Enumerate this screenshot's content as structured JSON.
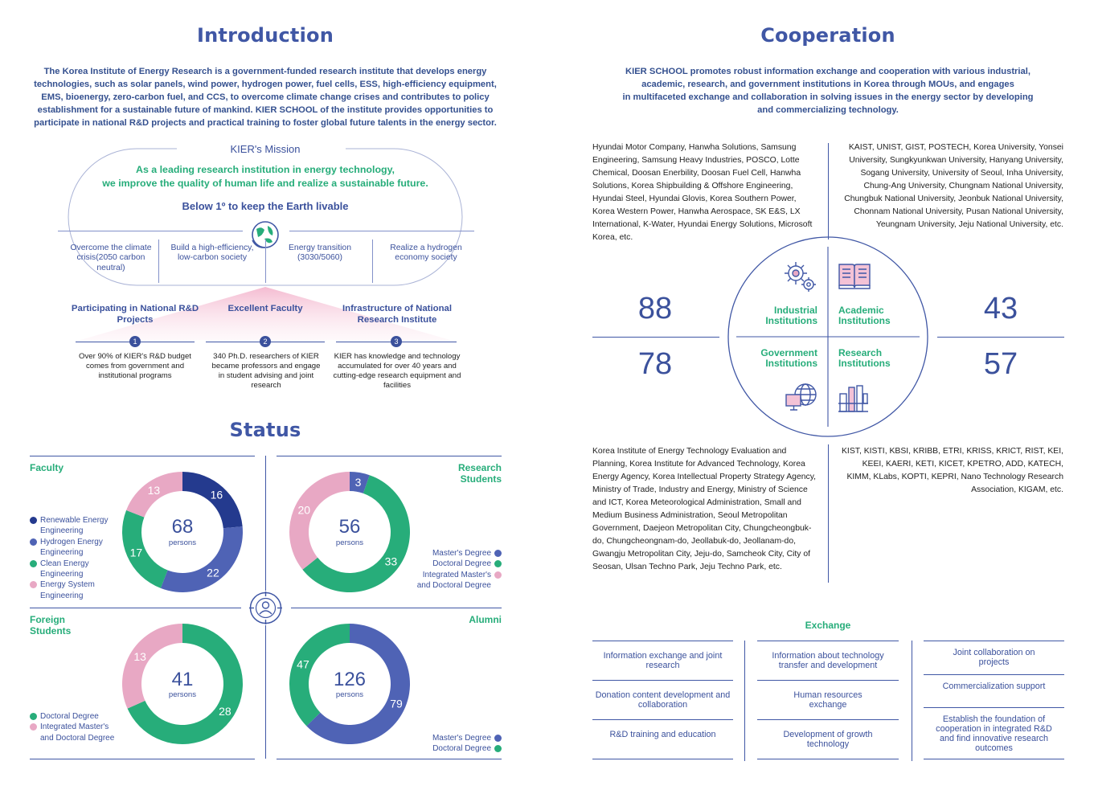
{
  "intro": {
    "title": "Introduction",
    "paragraph": "The Korea Institute of Energy Research is a government-funded research institute that develops energy technologies, such as solar panels, wind power, hydrogen power, fuel cells, ESS, high-efficiency equipment, EMS, bioenergy, zero-carbon fuel, and CCS, to overcome climate change crises and contributes to policy establishment for a sustainable future of mankind. KIER SCHOOL of the institute provides opportunities to participate in national R&D projects and practical training to foster global future talents in the energy sector.",
    "mission_label": "KIER's Mission",
    "mission_line1": "As a leading research institution in energy technology,",
    "mission_line2": "we improve the quality of human life and realize a sustainable future.",
    "goal": "Below 1º to keep the Earth livable",
    "goals": [
      "Overcome the climate crisis(2050 carbon neutral)",
      "Build a high-efficiency, low-carbon society",
      "Energy transition (3030/5060)",
      "Realize a hydrogen economy society"
    ],
    "pillars": [
      {
        "num": "1",
        "title": "Participating in National R&D Projects",
        "desc": "Over 90% of KIER's R&D budget comes from government and institutional programs"
      },
      {
        "num": "2",
        "title": "Excellent Faculty",
        "desc": "340 Ph.D. researchers of KIER became professors and engage in student advising and joint research"
      },
      {
        "num": "3",
        "title": "Infrastructure of National Research Institute",
        "desc": "KIER has knowledge and technology accumulated for over 40 years and cutting-edge research equipment and facilities"
      }
    ]
  },
  "status": {
    "title": "Status",
    "persons_label": "persons",
    "faculty": {
      "title": "Faculty",
      "total": "68",
      "legend": [
        "Renewable Energy Engineering",
        "Hydrogen Energy Engineering",
        "Clean Energy Engineering",
        "Energy System Engineering"
      ]
    },
    "research": {
      "title": "Research Students",
      "total": "56",
      "legend": [
        "Master's Degree",
        "Doctoral Degree",
        "Integrated Master's and Doctoral Degree"
      ]
    },
    "foreign": {
      "title": "Foreign Students",
      "total": "41",
      "legend": [
        "Doctoral Degree",
        "Integrated Master's and Doctoral Degree"
      ]
    },
    "alumni": {
      "title": "Alumni",
      "total": "126",
      "legend": [
        "Master's Degree",
        "Doctoral Degree"
      ]
    }
  },
  "chart_data": [
    {
      "type": "pie",
      "title": "Faculty",
      "categories": [
        "Renewable Energy Engineering",
        "Hydrogen Energy Engineering",
        "Clean Energy Engineering",
        "Energy System Engineering"
      ],
      "values": [
        16,
        22,
        17,
        13
      ],
      "colors": [
        "#243a8e",
        "#4f63b5",
        "#27ad7a",
        "#e8a8c4"
      ]
    },
    {
      "type": "pie",
      "title": "Research Students",
      "categories": [
        "Master's Degree",
        "Doctoral Degree",
        "Integrated Master's and Doctoral Degree"
      ],
      "values": [
        3,
        33,
        20
      ],
      "colors": [
        "#4f63b5",
        "#27ad7a",
        "#e8a8c4"
      ]
    },
    {
      "type": "pie",
      "title": "Foreign Students",
      "categories": [
        "Doctoral Degree",
        "Integrated Master's and Doctoral Degree"
      ],
      "values": [
        28,
        13
      ],
      "colors": [
        "#27ad7a",
        "#e8a8c4"
      ]
    },
    {
      "type": "pie",
      "title": "Alumni",
      "categories": [
        "Master's Degree",
        "Doctoral Degree"
      ],
      "values": [
        79,
        47
      ],
      "colors": [
        "#4f63b5",
        "#27ad7a"
      ]
    }
  ],
  "coop": {
    "title": "Cooperation",
    "paragraph_lines": [
      "KIER SCHOOL promotes robust information exchange and cooperation with various industrial,",
      "academic, research, and government institutions in Korea through MOUs, and engages",
      "in multifaceted exchange and collaboration in solving issues in the energy sector by developing",
      "and commercializing technology."
    ],
    "industrial_list": "Hyundai Motor Company, Hanwha Solutions, Samsung Engineering, Samsung Heavy Industries, POSCO, Lotte Chemical, Doosan Enerbility, Doosan Fuel Cell, Hanwha Solutions, Korea Shipbuilding & Offshore Engineering, Hyundai Steel, Hyundai Glovis, Korea Southern Power, Korea Western Power, Hanwha Aerospace, SK E&S, LX International, K-Water, Hyundai Energy Solutions, Microsoft Korea, etc.",
    "academic_list": "KAIST, UNIST, GIST, POSTECH, Korea University, Yonsei University, Sungkyunkwan University, Hanyang University, Sogang University, University of Seoul, Inha University, Chung-Ang University, Chungnam National University, Chungbuk National University, Jeonbuk National University, Chonnam National University, Pusan National University, Yeungnam University, Jeju National University, etc.",
    "government_list": "Korea Institute of Energy Technology Evaluation and Planning, Korea Institute for Advanced Technology, Korea Energy Agency, Korea Intellectual Property Strategy Agency, Ministry of Trade, Industry and Energy, Ministry of Science and ICT, Korea Meteorological Administration, Small and Medium Business Administration, Seoul Metropolitan Government, Daejeon Metropolitan City, Chungcheongbuk-do, Chungcheongnam-do, Jeollabuk-do, Jeollanam-do, Gwangju Metropolitan City, Jeju-do, Samcheok City, City of Seosan, Ulsan Techno Park, Jeju Techno Park, etc.",
    "research_list": "KIST, KISTI, KBSI, KRIBB, ETRI, KRISS, KRICT, RIST, KEI, KEEI, KAERI, KETI, KICET, KPETRO, ADD, KATECH, KIMM, KLabs, KOPTI, KEPRI, Nano Technology Research Association, KIGAM, etc.",
    "counts": {
      "industrial": "88",
      "academic": "43",
      "government": "78",
      "research": "57"
    },
    "labels": {
      "industrial": [
        "Industrial",
        "Institutions"
      ],
      "academic": [
        "Academic",
        "Institutions"
      ],
      "government": [
        "Government",
        "Institutions"
      ],
      "research": [
        "Research",
        "Institutions"
      ]
    },
    "exchange_title": "Exchange",
    "exchange_col1": [
      "Information exchange and joint research",
      "Donation content development and collaboration",
      "R&D training and education"
    ],
    "exchange_col2": [
      "Information about technology transfer and development",
      "Human resources exchange",
      "Development of growth technology"
    ],
    "exchange_col3": [
      "Joint collaboration on projects",
      "Commercialization support",
      "Establish the foundation of cooperation in integrated R&D and find innovative research outcomes"
    ]
  },
  "icons": [
    "globe-leaf-icon",
    "gear-icon",
    "book-icon",
    "globe-computer-icon",
    "factory-icon",
    "person-target-icon"
  ],
  "colors": {
    "navy": "#4057a5",
    "green": "#27ad7a",
    "pink": "#e8a8c4",
    "dark_navy": "#243a8e"
  }
}
